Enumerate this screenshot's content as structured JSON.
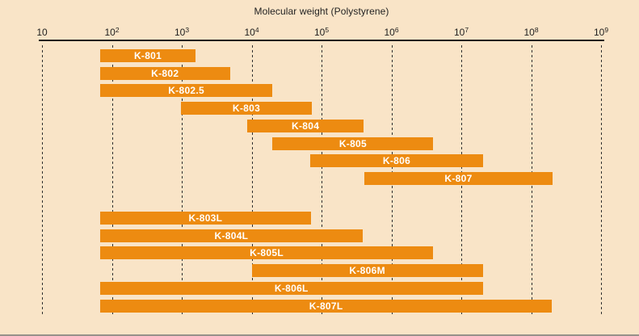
{
  "colors": {
    "background": "#f9e4c7",
    "bar": "#ed8b11",
    "bar_label": "#ffffff",
    "axis": "#1f1f1f",
    "grid": "#2e2e2e",
    "title_text": "#222222"
  },
  "chart_data": {
    "type": "bar",
    "subtype": "horizontal-log-range",
    "title": "Molecular weight (Polystyrene)",
    "x_axis": {
      "scale": "log10",
      "min": 10,
      "max": 1000000000,
      "tick_base": "10",
      "tick_exponents": [
        1,
        2,
        3,
        4,
        5,
        6,
        7,
        8,
        9
      ],
      "grid": "vertical-dashed"
    },
    "legend": "none",
    "series": [
      {
        "label": "K-801",
        "group": 1,
        "log_start": 1.83,
        "log_end": 3.2,
        "mw_start": 70,
        "mw_end": 1500
      },
      {
        "label": "K-802",
        "group": 1,
        "log_start": 1.83,
        "log_end": 3.69,
        "mw_start": 70,
        "mw_end": 5000
      },
      {
        "label": "K-802.5",
        "group": 1,
        "log_start": 1.83,
        "log_end": 4.3,
        "mw_start": 70,
        "mw_end": 20000
      },
      {
        "label": "K-803",
        "group": 1,
        "log_start": 2.99,
        "log_end": 4.86,
        "mw_start": 1000,
        "mw_end": 70000
      },
      {
        "label": "K-804",
        "group": 1,
        "log_start": 3.94,
        "log_end": 5.6,
        "mw_start": 8000,
        "mw_end": 400000
      },
      {
        "label": "K-805",
        "group": 1,
        "log_start": 4.3,
        "log_end": 6.6,
        "mw_start": 20000,
        "mw_end": 4000000
      },
      {
        "label": "K-806",
        "group": 1,
        "log_start": 4.84,
        "log_end": 7.31,
        "mw_start": 70000,
        "mw_end": 20000000
      },
      {
        "label": "K-807",
        "group": 1,
        "log_start": 5.61,
        "log_end": 8.31,
        "mw_start": 400000,
        "mw_end": 200000000
      },
      {
        "label": "K-803L",
        "group": 2,
        "log_start": 1.83,
        "log_end": 4.85,
        "mw_start": 70,
        "mw_end": 70000
      },
      {
        "label": "K-804L",
        "group": 2,
        "log_start": 1.83,
        "log_end": 5.59,
        "mw_start": 70,
        "mw_end": 400000
      },
      {
        "label": "K-805L",
        "group": 2,
        "log_start": 1.83,
        "log_end": 6.6,
        "mw_start": 70,
        "mw_end": 4000000
      },
      {
        "label": "K-806M",
        "group": 2,
        "log_start": 4.0,
        "log_end": 7.31,
        "mw_start": 10000,
        "mw_end": 20000000
      },
      {
        "label": "K-806L",
        "group": 2,
        "log_start": 1.83,
        "log_end": 7.31,
        "mw_start": 70,
        "mw_end": 20000000
      },
      {
        "label": "K-807L",
        "group": 2,
        "log_start": 1.83,
        "log_end": 8.3,
        "mw_start": 70,
        "mw_end": 200000000
      }
    ]
  }
}
